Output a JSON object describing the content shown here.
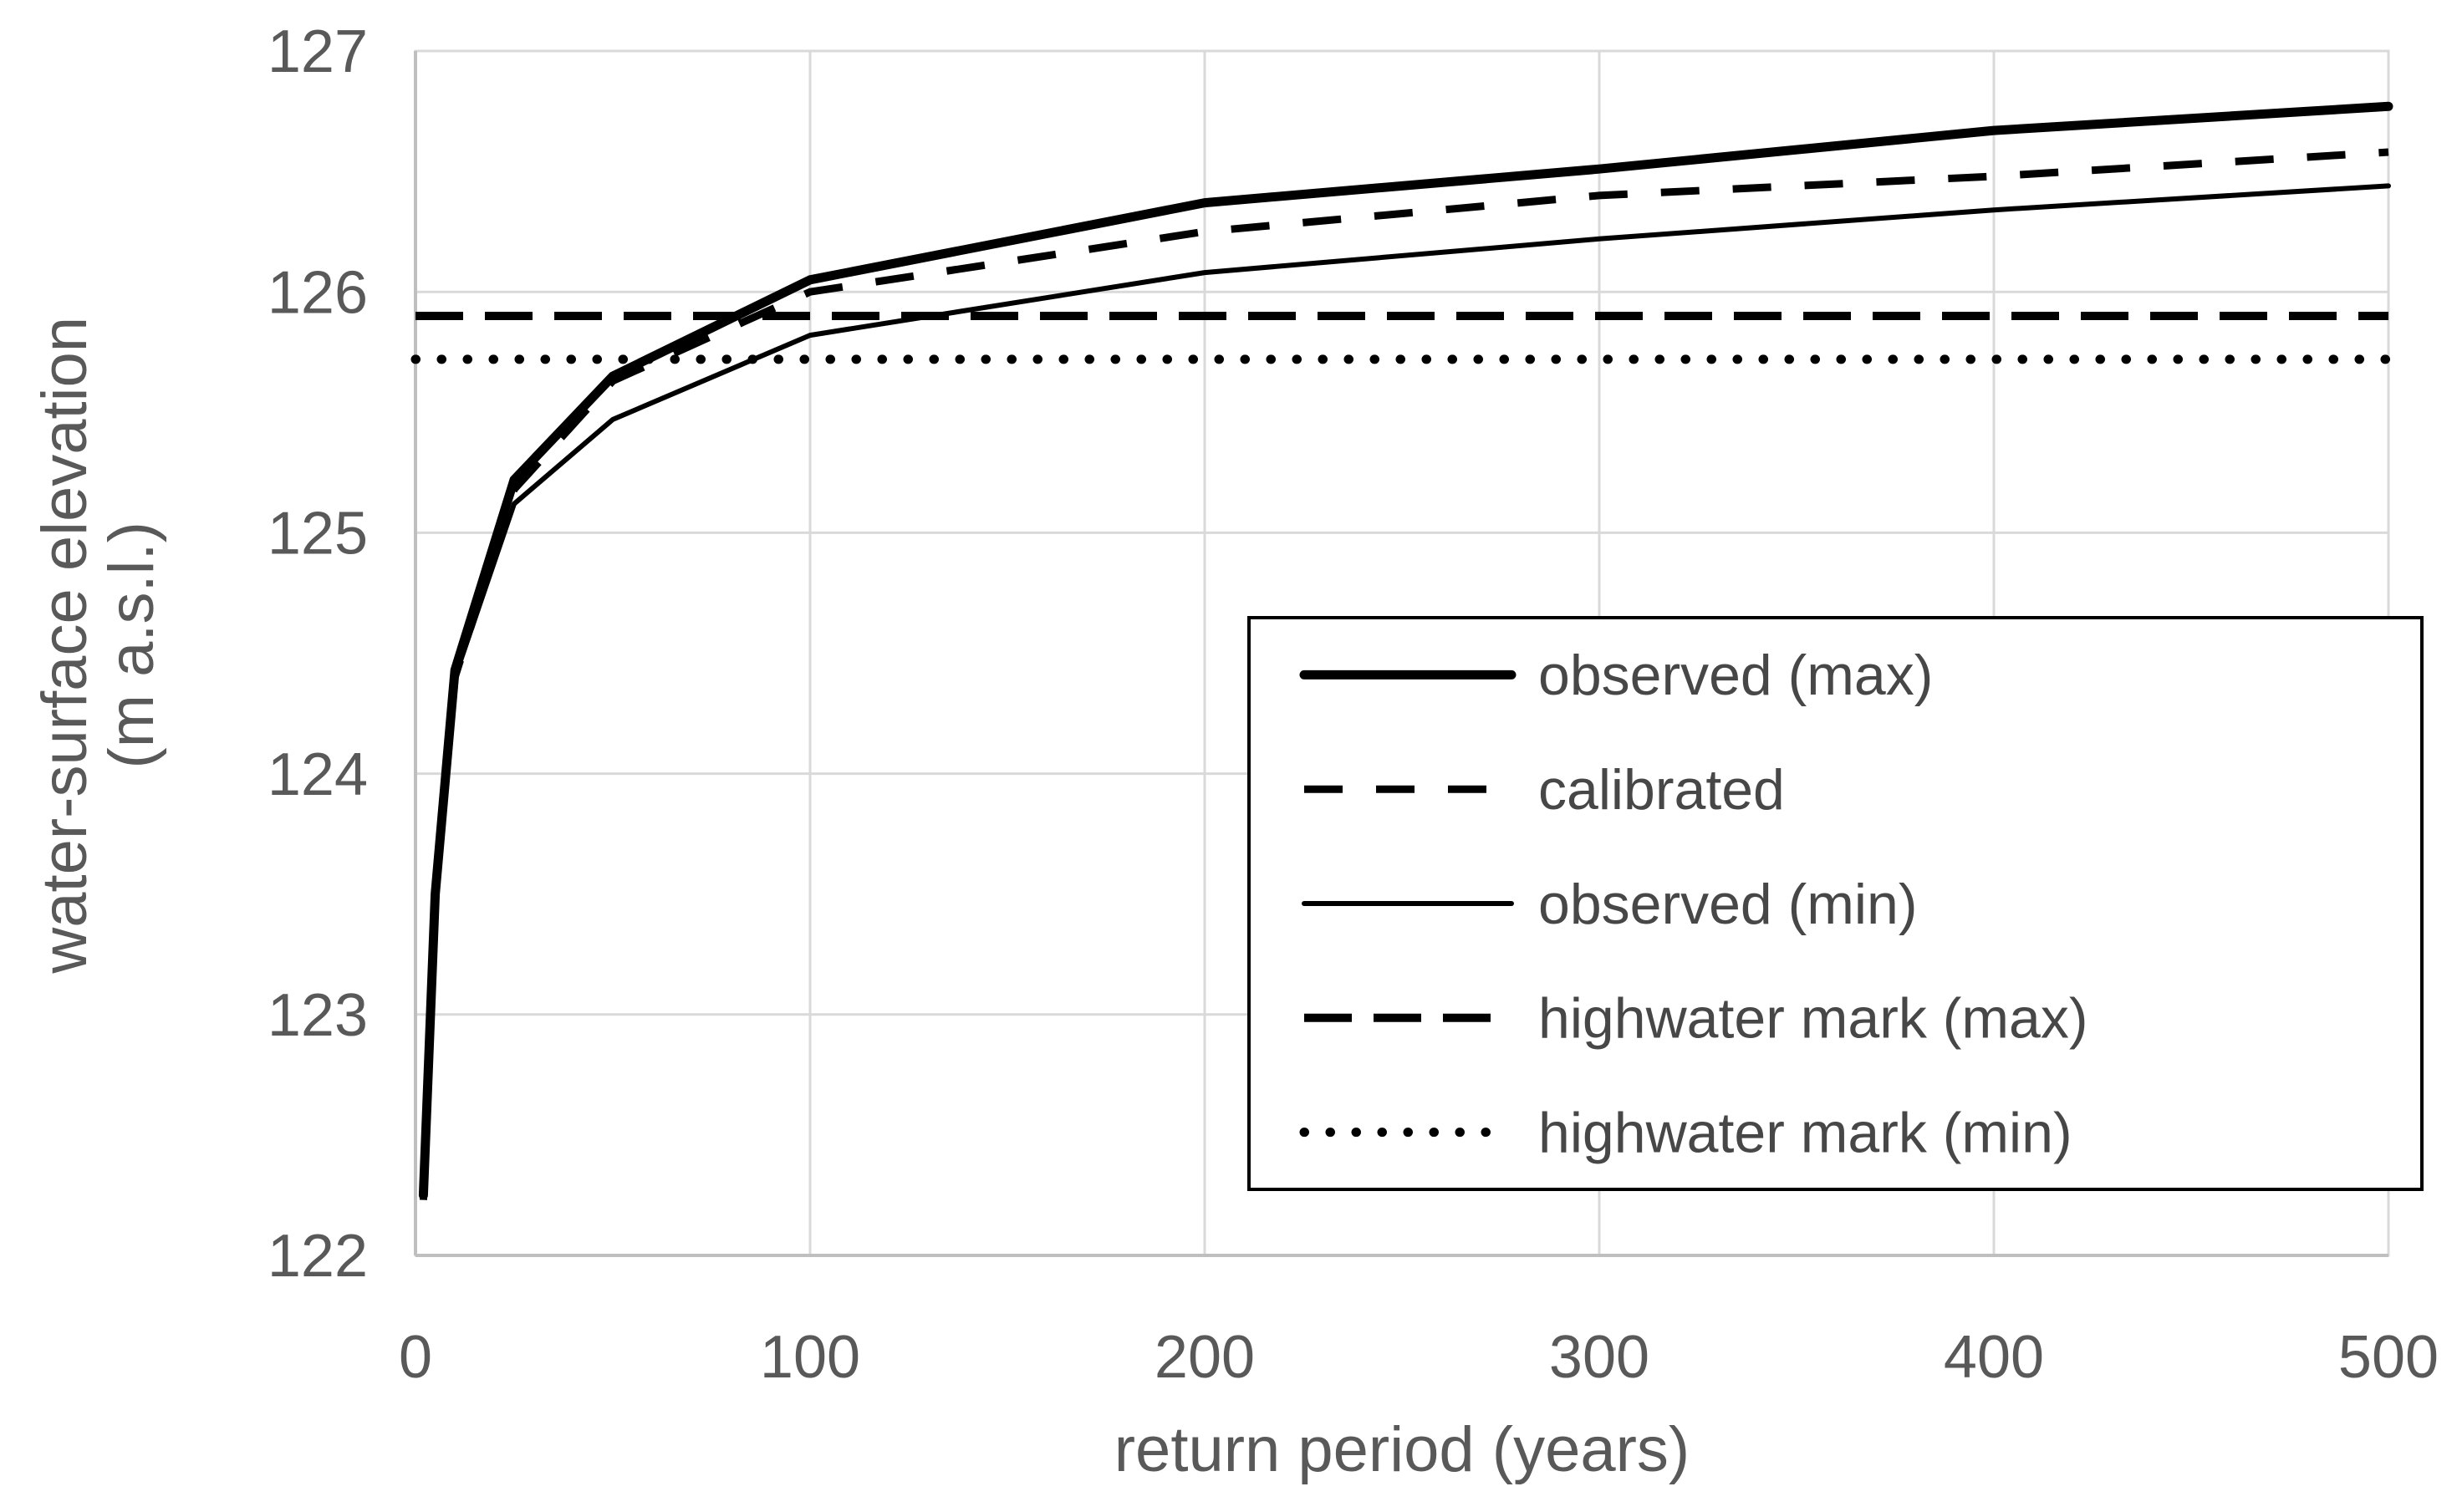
{
  "colors": {
    "line": "#000000",
    "grid": "#d9d9d9",
    "axis": "#bfbfbf",
    "tick_text": "#595959",
    "legend_text": "#474747",
    "legend_border": "#000000",
    "background": "#ffffff"
  },
  "chart_data": {
    "type": "line",
    "title": "",
    "xlabel": "return period (years)",
    "ylabel_lines": [
      "water-surface elevation",
      "(m a.s.l.)"
    ],
    "xlim": [
      0,
      500
    ],
    "ylim": [
      122,
      127
    ],
    "x_ticks": [
      0,
      100,
      200,
      300,
      400,
      500
    ],
    "y_ticks": [
      122,
      123,
      124,
      125,
      126,
      127
    ],
    "grid": true,
    "legend_position": "inside lower-right",
    "series": [
      {
        "name": "observed (max)",
        "style": "thick-solid",
        "x": [
          2,
          5,
          10,
          25,
          50,
          100,
          200,
          300,
          400,
          500
        ],
        "y": [
          122.25,
          123.5,
          124.43,
          125.22,
          125.65,
          126.05,
          126.37,
          126.51,
          126.67,
          126.77
        ]
      },
      {
        "name": "calibrated",
        "style": "dashed",
        "x": [
          2,
          5,
          10,
          25,
          50,
          100,
          200,
          300,
          400,
          500
        ],
        "y": [
          122.23,
          123.48,
          124.4,
          125.18,
          125.63,
          126.0,
          126.25,
          126.4,
          126.48,
          126.58
        ]
      },
      {
        "name": "observed (min)",
        "style": "thin-solid",
        "x": [
          2,
          5,
          10,
          25,
          50,
          100,
          200,
          300,
          400,
          500
        ],
        "y": [
          122.25,
          123.48,
          124.4,
          125.12,
          125.47,
          125.82,
          126.08,
          126.22,
          126.34,
          126.44
        ]
      },
      {
        "name": "highwater mark (max)",
        "style": "dashed-bold",
        "x": [
          0,
          500
        ],
        "y": [
          125.9,
          125.9
        ]
      },
      {
        "name": "highwater mark (min)",
        "style": "dotted",
        "x": [
          0,
          500
        ],
        "y": [
          125.72,
          125.72
        ]
      }
    ],
    "legend": [
      "observed (max)",
      "calibrated",
      "observed (min)",
      "highwater mark (max)",
      "highwater mark (min)"
    ]
  }
}
